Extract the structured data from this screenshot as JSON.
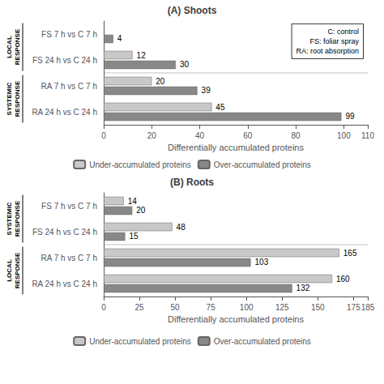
{
  "chart_data": [
    {
      "type": "bar",
      "orientation": "horizontal",
      "title": "(A) Shoots",
      "xlabel": "Differentially accumulated proteins",
      "categories": [
        "FS 7 h vs C 7 h",
        "FS 24 h vs C 24 h",
        "RA 7 h vs C 7 h",
        "RA 24 h vs C 24 h"
      ],
      "series": [
        {
          "name": "Under-accumulated proteins",
          "color": "#c8c8c8",
          "values": [
            null,
            12,
            20,
            45
          ]
        },
        {
          "name": "Over-accumulated proteins",
          "color": "#888888",
          "values": [
            4,
            30,
            39,
            99
          ]
        }
      ],
      "groups": [
        {
          "label": "LOCAL\nRESPONSE",
          "categories": [
            "FS 7 h vs C 7 h",
            "FS 24 h vs C 24 h"
          ]
        },
        {
          "label": "SYSTEMIC\nRESPONSE",
          "categories": [
            "RA 7 h vs C 7 h",
            "RA 24 h vs C 24 h"
          ]
        }
      ],
      "xlim": [
        0,
        110
      ],
      "xticks": [
        0,
        20,
        40,
        60,
        80,
        100
      ],
      "data_labels": true,
      "legend": "bottom",
      "annotations": [
        "C: control\nFS: foliar spray\nRA: root absorption"
      ]
    },
    {
      "type": "bar",
      "orientation": "horizontal",
      "title": "(B) Roots",
      "xlabel": "Differentially accumulated proteins",
      "categories": [
        "FS 7 h vs C 7 h",
        "FS 24 h vs C 24 h",
        "RA 7 h vs C 7 h",
        "RA 24 h vs C 24 h"
      ],
      "series": [
        {
          "name": "Under-accumulated proteins",
          "color": "#c8c8c8",
          "values": [
            14,
            48,
            165,
            160
          ]
        },
        {
          "name": "Over-accumulated proteins",
          "color": "#888888",
          "values": [
            20,
            15,
            103,
            132
          ]
        }
      ],
      "groups": [
        {
          "label": "SYSTEMIC\nRESPONSE",
          "categories": [
            "FS 7 h vs C 7 h",
            "FS 24 h vs C 24 h"
          ]
        },
        {
          "label": "LOCAL\nRESPONSE",
          "categories": [
            "RA 7 h vs C 7 h",
            "RA 24 h vs C 24 h"
          ]
        }
      ],
      "xlim": [
        0,
        185
      ],
      "xticks": [
        0,
        25,
        50,
        75,
        100,
        125,
        150,
        175
      ],
      "data_labels": true,
      "legend": "bottom"
    }
  ]
}
